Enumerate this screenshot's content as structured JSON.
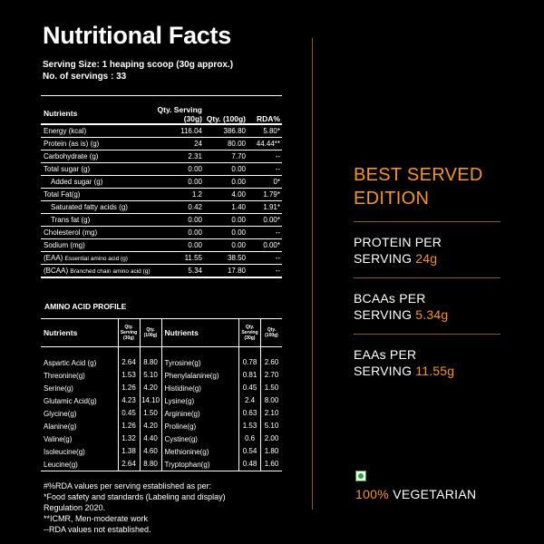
{
  "title": "Nutritional Facts",
  "serving_size": "Serving Size: 1 heaping scoop (30g approx.)",
  "servings": "No. of servings : 33",
  "nutrition": {
    "headers": [
      "Nutrients",
      "Qty. Serving (30g)",
      "Qty. (100g)",
      "RDA%"
    ],
    "rows": [
      {
        "name": "Energy (kcal)",
        "serving": "116.04",
        "per100": "386.80",
        "rda": "5.80*"
      },
      {
        "name": "Protein (as is) (g)",
        "serving": "24",
        "per100": "80.00",
        "rda": "44.44**"
      },
      {
        "name": "Carbohydrate (g)",
        "serving": "2.31",
        "per100": "7.70",
        "rda": "--"
      },
      {
        "name": "Total sugar (g)",
        "serving": "0.00",
        "per100": "0.00",
        "rda": "--"
      },
      {
        "name": "Added sugar (g)",
        "serving": "0.00",
        "per100": "0.00",
        "rda": "0*"
      },
      {
        "name": "Total Fat(g)",
        "serving": "1.2",
        "per100": "4.00",
        "rda": "1.79*"
      },
      {
        "name": "Saturated fatty acids (g)",
        "serving": "0.42",
        "per100": "1.40",
        "rda": "1.91*"
      },
      {
        "name": "Trans fat (g)",
        "serving": "0.00",
        "per100": "0.00",
        "rda": "0.00*"
      },
      {
        "name": "Cholesterol (mg)",
        "serving": "0.00",
        "per100": "0.00",
        "rda": "--"
      },
      {
        "name": "Sodium (mg)",
        "serving": "0.00",
        "per100": "0.00",
        "rda": "0.00*"
      },
      {
        "name": "(EAA)",
        "small": "Essential amino acid (g)",
        "serving": "11.55",
        "per100": "38.50",
        "rda": "--"
      },
      {
        "name": "(BCAA)",
        "small": "Branched chain amino acid (g)",
        "serving": "5.34",
        "per100": "17.80",
        "rda": "--"
      }
    ]
  },
  "amino": {
    "title": "AMINO ACID PROFILE",
    "header_name": "Nutrients",
    "header_q1": "Qty. Serving (30g)",
    "header_q2": "Qty. (100g)",
    "left": [
      {
        "name": "Aspartic Acid (g)",
        "s": "2.64",
        "h": "8.80"
      },
      {
        "name": "Threonine(g)",
        "s": "1.53",
        "h": "5.10"
      },
      {
        "name": "Serine(g)",
        "s": "1.26",
        "h": "4.20"
      },
      {
        "name": "Glutamic Acid(g)",
        "s": "4.23",
        "h": "14.10"
      },
      {
        "name": "Glycine(g)",
        "s": "0.45",
        "h": "1.50"
      },
      {
        "name": "Alanine(g)",
        "s": "1.26",
        "h": "4.20"
      },
      {
        "name": "Valine(g)",
        "s": "1.32",
        "h": "4.40"
      },
      {
        "name": "Isoleucine(g)",
        "s": "1.38",
        "h": "4.60"
      },
      {
        "name": "Leucine(g)",
        "s": "2.64",
        "h": "8.80"
      }
    ],
    "right": [
      {
        "name": "Tyrosine(g)",
        "s": "0.78",
        "h": "2.60"
      },
      {
        "name": "Phenylalanine(g)",
        "s": "0.81",
        "h": "2.70"
      },
      {
        "name": "Histidine(g)",
        "s": "0.45",
        "h": "1.50"
      },
      {
        "name": "Lysine(g)",
        "s": "2.4",
        "h": "8.00"
      },
      {
        "name": "Arginine(g)",
        "s": "0.63",
        "h": "2.10"
      },
      {
        "name": "Proline(g)",
        "s": "1.53",
        "h": "5.10"
      },
      {
        "name": "Cystine(g)",
        "s": "0.6",
        "h": "2.00"
      },
      {
        "name": "Methionine(g)",
        "s": "0.54",
        "h": "1.80"
      },
      {
        "name": "Tryptophan(g)",
        "s": "0.48",
        "h": "1.60"
      }
    ]
  },
  "notes": [
    "#%RDA values per serving established as per:",
    "*Food safety and standards (Labeling and display)",
    "Regulation 2020.",
    "**ICMR, Men-moderate work",
    "--RDA values not established."
  ],
  "right_panel": {
    "title_line1": "BEST SERVED",
    "title_line2": "EDITION",
    "stats": [
      {
        "line1": "PROTEIN PER",
        "line2": "SERVING ",
        "value": "24g"
      },
      {
        "line1": "BCAAs PER",
        "line2": "SERVING ",
        "value": "5.34g"
      },
      {
        "line1": "EAAs PER",
        "line2": "SERVING ",
        "value": "11.55g"
      }
    ],
    "veg_percent": "100%",
    "veg_label": " VEGETARIAN"
  },
  "colors": {
    "accent": "#f39527",
    "background": "#000000",
    "veg_green": "#27a33b"
  },
  "icons": {
    "veg": "veg-mark-icon"
  }
}
